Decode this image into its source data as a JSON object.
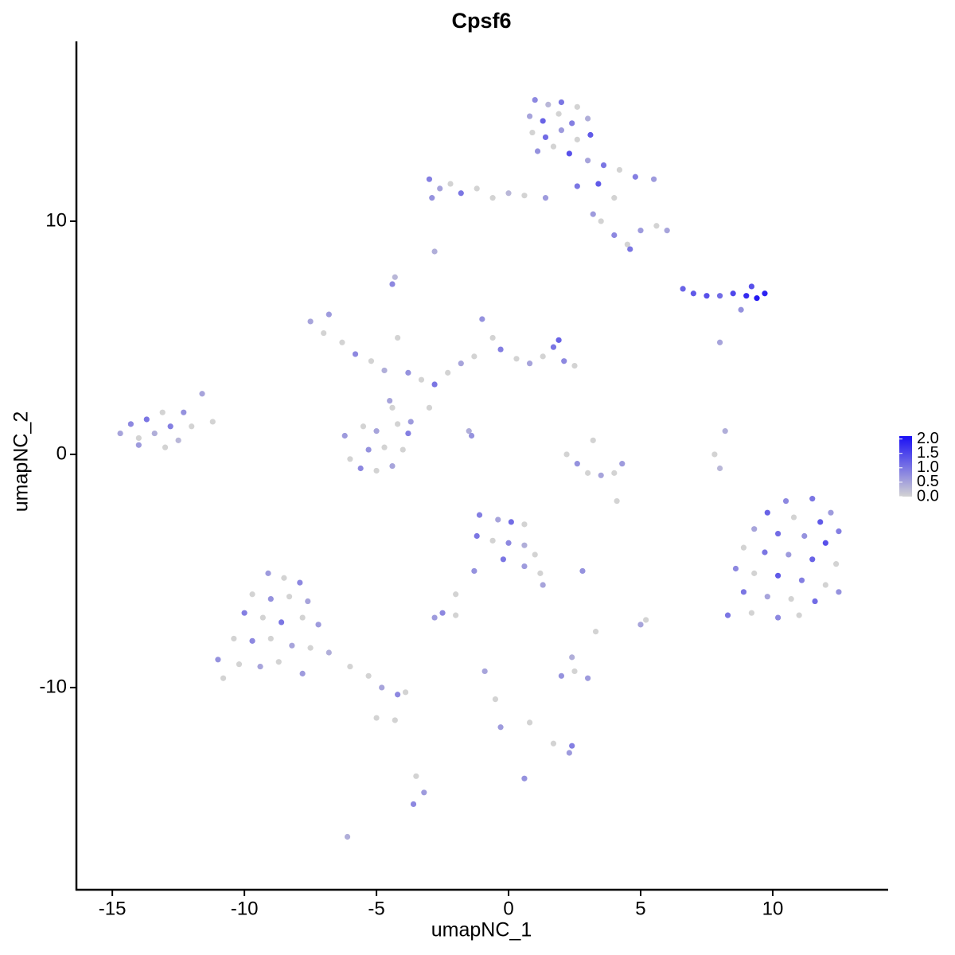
{
  "chart_data": {
    "type": "scatter",
    "title": "Cpsf6",
    "x_label": "umapNC_1",
    "y_label": "umapNC_2",
    "xlim": [
      -16.36,
      14.37
    ],
    "ylim": [
      -18.67,
      17.71
    ],
    "xticks": [
      -15,
      -10,
      -5,
      0,
      5,
      10
    ],
    "yticks": [
      -10,
      0,
      10
    ],
    "color_scale": {
      "low": "#d3d3d3",
      "high": "#1a0ff5",
      "lim": [
        0,
        2.1
      ],
      "ticks": [
        {
          "value": 0,
          "label": "0.0"
        },
        {
          "value": 0.5,
          "label": "0.5"
        },
        {
          "value": 1,
          "label": "1.0"
        },
        {
          "value": 1.5,
          "label": "1.5"
        },
        {
          "value": 2,
          "label": "2.0"
        }
      ]
    },
    "x": [
      1.0,
      1.5,
      2.0,
      2.6,
      0.8,
      1.3,
      1.9,
      2.4,
      3.0,
      0.9,
      1.4,
      2.0,
      2.6,
      3.1,
      1.1,
      1.7,
      2.3,
      3.0,
      3.6,
      4.2,
      4.8,
      5.5,
      3.4,
      4.0,
      2.6,
      -3.0,
      -2.6,
      -2.2,
      -1.8,
      -1.2,
      -0.6,
      0.0,
      0.6,
      1.4,
      -2.9,
      3.5,
      4.0,
      4.5,
      5.0,
      5.6,
      6.0,
      4.6,
      3.2,
      6.6,
      7.0,
      7.5,
      8.0,
      8.5,
      9.0,
      9.4,
      9.7,
      9.2,
      8.8,
      -2.8,
      -4.4,
      -4.3,
      -14.7,
      -14.3,
      -14.0,
      -13.7,
      -13.4,
      -13.1,
      -12.8,
      -12.5,
      -12.3,
      -12.0,
      -11.6,
      -11.2,
      -14.0,
      -13.0,
      -7.5,
      -7.0,
      -6.8,
      -6.3,
      -5.8,
      -5.2,
      -4.7,
      -4.2,
      -3.8,
      -3.3,
      -2.8,
      -2.3,
      -1.8,
      -1.3,
      -1.0,
      -0.6,
      -0.3,
      0.3,
      0.8,
      1.3,
      1.7,
      2.1,
      2.5,
      1.9,
      -3.0,
      -3.7,
      -1.5,
      -1.4,
      -4.5,
      -4.4,
      -6.2,
      -6.0,
      -5.6,
      -5.0,
      -4.4,
      -4.0,
      -3.8,
      -4.2,
      -5.0,
      -5.5,
      -5.3,
      -4.7,
      2.2,
      2.6,
      3.0,
      3.5,
      4.0,
      4.3,
      3.2,
      4.1,
      8.2,
      7.8,
      8.0,
      8.0,
      10.5,
      11.5,
      12.2,
      9.8,
      10.8,
      11.8,
      12.5,
      9.3,
      10.2,
      11.2,
      12.0,
      8.9,
      9.7,
      10.6,
      11.5,
      12.4,
      8.6,
      9.3,
      10.2,
      11.1,
      12.0,
      8.9,
      9.8,
      10.7,
      11.6,
      12.5,
      8.3,
      9.2,
      10.2,
      11.0,
      -1.1,
      -0.4,
      0.1,
      0.6,
      -1.2,
      -0.6,
      0.0,
      0.6,
      1.0,
      -0.2,
      0.6,
      1.2,
      1.3,
      -1.3,
      -2.0,
      -2.5,
      -2.0,
      -2.8,
      2.8,
      5.0,
      5.2,
      3.3,
      2.0,
      2.5,
      3.0,
      2.4,
      -0.9,
      -0.5,
      -0.3,
      0.8,
      1.7,
      2.4,
      2.3,
      0.6,
      -3.5,
      -3.2,
      -3.6,
      -6.1,
      -9.1,
      -8.5,
      -7.9,
      -9.7,
      -9.0,
      -8.3,
      -7.6,
      -10.0,
      -9.3,
      -8.6,
      -7.8,
      -7.2,
      -10.4,
      -9.7,
      -9.0,
      -8.2,
      -7.5,
      -6.8,
      -11.0,
      -10.2,
      -9.4,
      -8.7,
      -7.8,
      -6.0,
      -5.3,
      -4.8,
      -4.2,
      -3.9,
      -10.8,
      -5.0,
      -4.3
    ],
    "y": [
      15.2,
      15.0,
      15.1,
      14.9,
      14.5,
      14.3,
      14.6,
      14.2,
      14.4,
      13.8,
      13.6,
      13.9,
      13.5,
      13.7,
      13.0,
      13.2,
      12.9,
      12.6,
      12.4,
      12.2,
      11.9,
      11.8,
      11.6,
      11.0,
      11.5,
      11.8,
      11.4,
      11.6,
      11.2,
      11.4,
      11.0,
      11.2,
      11.1,
      11.0,
      11.0,
      10.0,
      9.4,
      9.0,
      9.6,
      9.8,
      9.6,
      8.8,
      10.3,
      7.1,
      6.9,
      6.8,
      6.8,
      6.9,
      6.8,
      6.7,
      6.9,
      7.2,
      6.2,
      8.7,
      7.3,
      7.6,
      0.9,
      1.3,
      0.7,
      1.5,
      0.9,
      1.8,
      1.2,
      0.6,
      1.8,
      1.2,
      2.6,
      1.4,
      0.4,
      0.3,
      5.7,
      5.2,
      6.0,
      4.8,
      4.3,
      4.0,
      3.6,
      5.0,
      3.5,
      3.2,
      3.0,
      3.5,
      3.9,
      4.2,
      5.8,
      5.0,
      4.5,
      4.1,
      3.9,
      4.2,
      4.6,
      4.0,
      3.8,
      4.9,
      2.0,
      1.4,
      1.0,
      0.8,
      2.3,
      2.0,
      0.8,
      -0.2,
      -0.6,
      -0.7,
      -0.5,
      0.2,
      0.9,
      1.3,
      1.0,
      1.2,
      0.2,
      0.3,
      0.0,
      -0.4,
      -0.8,
      -0.9,
      -0.8,
      -0.4,
      0.6,
      -2.0,
      1.0,
      0.0,
      -0.6,
      4.8,
      -2.0,
      -1.9,
      -2.5,
      -2.5,
      -2.7,
      -2.9,
      -3.3,
      -3.2,
      -3.4,
      -3.5,
      -3.8,
      -4.0,
      -4.2,
      -4.3,
      -4.5,
      -4.7,
      -4.9,
      -5.1,
      -5.2,
      -5.4,
      -5.6,
      -5.9,
      -6.1,
      -6.2,
      -6.3,
      -5.9,
      -6.9,
      -6.8,
      -7.0,
      -6.9,
      -2.6,
      -2.8,
      -2.9,
      -3.0,
      -3.5,
      -3.7,
      -3.8,
      -3.9,
      -4.3,
      -4.5,
      -4.8,
      -5.1,
      -5.6,
      -5.0,
      -6.0,
      -6.8,
      -6.9,
      -7.0,
      -5.0,
      -7.3,
      -7.1,
      -7.6,
      -9.5,
      -9.3,
      -9.6,
      -8.7,
      -9.3,
      -10.5,
      -11.7,
      -11.5,
      -12.4,
      -12.5,
      -12.8,
      -13.9,
      -13.8,
      -14.5,
      -15.0,
      -16.4,
      -5.1,
      -5.3,
      -5.5,
      -6.0,
      -6.2,
      -6.1,
      -6.3,
      -6.8,
      -7.0,
      -7.2,
      -7.0,
      -7.3,
      -7.9,
      -8.0,
      -7.9,
      -8.2,
      -8.3,
      -8.5,
      -8.8,
      -9.0,
      -9.1,
      -8.9,
      -9.4,
      -9.1,
      -9.5,
      -10.0,
      -10.3,
      -10.2,
      -9.6,
      -11.3,
      -11.4
    ],
    "values": [
      0.8,
      0.3,
      1.0,
      0,
      0.5,
      1.2,
      0,
      0.9,
      0.4,
      0,
      1.1,
      0.6,
      0,
      1.3,
      0.7,
      0,
      1.4,
      0.5,
      1.0,
      0,
      0.9,
      0.6,
      1.3,
      0,
      1.0,
      0.9,
      0.5,
      0,
      1.0,
      0,
      0,
      0.3,
      0,
      0.6,
      0.7,
      0,
      0.8,
      0,
      0.6,
      0,
      0.5,
      1.0,
      0.6,
      1.2,
      1.3,
      1.4,
      1.1,
      1.5,
      1.8,
      2.0,
      1.9,
      1.4,
      0.7,
      0.4,
      0.8,
      0.3,
      0.5,
      0.8,
      0,
      1.0,
      0.4,
      0,
      0.9,
      0.3,
      0.7,
      0,
      0.5,
      0,
      0.6,
      0,
      0.5,
      0,
      0.6,
      0,
      0.8,
      0,
      0.4,
      0,
      0.7,
      0,
      1.0,
      0,
      0.5,
      0,
      0.7,
      0,
      0.9,
      0,
      0.5,
      0,
      1.0,
      0.8,
      0,
      1.2,
      0,
      0.6,
      0.4,
      0.7,
      0.5,
      0,
      0.6,
      0,
      0.8,
      0,
      0.5,
      0,
      0.9,
      0,
      0.5,
      0,
      0.7,
      0,
      0,
      0.7,
      0,
      0.5,
      0,
      0.6,
      0,
      0,
      0.4,
      0,
      0.3,
      0.5,
      0.8,
      1.0,
      0.6,
      1.2,
      0,
      1.3,
      0.9,
      0.5,
      1.1,
      0.7,
      1.4,
      0,
      1.0,
      0.6,
      1.2,
      0,
      0.8,
      0,
      1.3,
      0.9,
      0,
      1.0,
      0.5,
      0,
      1.1,
      0.7,
      1.0,
      0,
      0.8,
      0,
      0.9,
      0.5,
      1.1,
      0,
      1.0,
      0,
      0.8,
      0.4,
      0,
      1.0,
      0.6,
      0,
      0.5,
      0.7,
      0,
      0.8,
      0,
      0.6,
      0.7,
      0.5,
      0,
      0,
      0.7,
      0,
      0.6,
      0.4,
      0.5,
      0,
      0.6,
      0,
      0,
      0.9,
      0.6,
      0.7,
      0,
      0.6,
      0.8,
      0.4,
      0.6,
      0,
      0.8,
      0,
      0.7,
      0,
      0.5,
      0.9,
      0,
      1.0,
      0,
      0.6,
      0,
      0.8,
      0,
      0.5,
      0,
      0.4,
      0.7,
      0,
      0.5,
      0,
      0.6,
      0,
      0,
      0.5,
      0.8,
      0,
      0,
      0,
      0
    ]
  }
}
